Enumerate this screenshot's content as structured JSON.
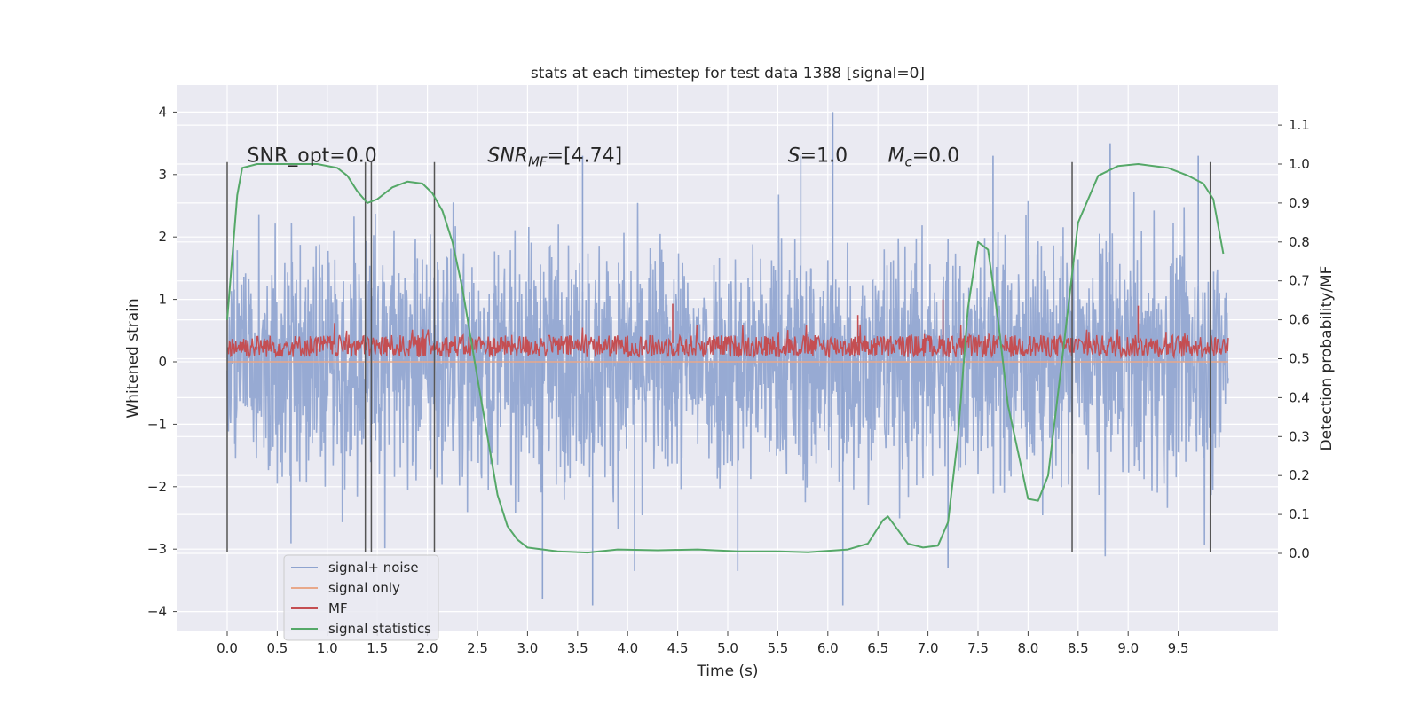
{
  "chart_data": {
    "type": "line",
    "title": "stats at each timestep for test data 1388 [signal=0]",
    "xlabel": "Time (s)",
    "ylabel": "Whitened strain",
    "ylabel_right": "Detection probability/MF",
    "xlim": [
      -0.5,
      10.5
    ],
    "ylim": [
      -4.3,
      4.4
    ],
    "ylim_right": [
      -0.2,
      1.2
    ],
    "grid": true,
    "legend_position": "lower-left",
    "x_ticks": [
      "0.0",
      "0.5",
      "1.0",
      "1.5",
      "2.0",
      "2.5",
      "3.0",
      "3.5",
      "4.0",
      "4.5",
      "5.0",
      "5.5",
      "6.0",
      "6.5",
      "7.0",
      "7.5",
      "8.0",
      "8.5",
      "9.0",
      "9.5"
    ],
    "y_ticks": [
      "4",
      "3",
      "2",
      "1",
      "0",
      "−1",
      "−2",
      "−3",
      "−4"
    ],
    "y_right_ticks": [
      "1.1",
      "1.0",
      "0.9",
      "0.8",
      "0.7",
      "0.6",
      "0.5",
      "0.4",
      "0.3",
      "0.2",
      "0.1",
      "0.0"
    ],
    "annotations": [
      {
        "text": "SNR_opt=0.0",
        "x": 0.2,
        "y": 3.2
      },
      {
        "text_main": "SNR",
        "text_sub": "MF",
        "text_rest": "=[4.74]",
        "x": 2.6,
        "y": 3.2
      },
      {
        "text_main": "S",
        "text_sub": "",
        "text_rest": "=1.0",
        "x": 5.6,
        "y": 3.2
      },
      {
        "text_main": "M",
        "text_sub": "c",
        "text_rest": "=0.0",
        "x": 6.6,
        "y": 3.2
      }
    ],
    "vertical_lines": [
      0.0,
      1.38,
      1.44,
      2.07,
      8.44,
      9.82
    ],
    "vertical_line_range": [
      -3.05,
      3.2
    ],
    "series": [
      {
        "name": "signal+ noise",
        "color": "#8ea3cf",
        "axis": "left",
        "description": "whitened strain noise, roughly symmetric in [-3.2, 3.3], spikes to 4.0",
        "x_range": [
          0.0,
          10.0
        ],
        "envelope_upper": 2.4,
        "envelope_lower": -2.5,
        "spikes": [
          {
            "x": 6.05,
            "y": 4.0
          },
          {
            "x": 8.82,
            "y": 3.5
          },
          {
            "x": 3.55,
            "y": 3.3
          },
          {
            "x": 7.65,
            "y": 3.3
          },
          {
            "x": 9.7,
            "y": 3.3
          },
          {
            "x": 5.73,
            "y": 3.3
          },
          {
            "x": 3.15,
            "y": -3.8
          },
          {
            "x": 3.65,
            "y": -3.9
          },
          {
            "x": 6.15,
            "y": -3.9
          },
          {
            "x": 5.1,
            "y": -3.35
          },
          {
            "x": 4.07,
            "y": -3.35
          },
          {
            "x": 7.2,
            "y": -3.3
          }
        ]
      },
      {
        "name": "signal only",
        "color": "#e8a88a",
        "axis": "left",
        "description": "zero signal",
        "x": [
          0.0,
          10.0
        ],
        "y": [
          0.0,
          0.0
        ]
      },
      {
        "name": "MF",
        "color": "#c44e52",
        "axis": "left",
        "description": "matched filter output fluctuating between 0.0 and 0.65, peaks near 0.95",
        "x_range": [
          0.0,
          10.0
        ],
        "mean": 0.25,
        "spread": 0.18,
        "peaks": [
          {
            "x": 4.45,
            "y": 0.93
          },
          {
            "x": 7.15,
            "y": 1.0
          },
          {
            "x": 9.1,
            "y": 0.9
          },
          {
            "x": 6.3,
            "y": 0.75
          }
        ]
      },
      {
        "name": "signal statistics",
        "color": "#55a868",
        "axis": "right",
        "x": [
          0.0,
          0.1,
          0.15,
          0.3,
          0.6,
          0.9,
          1.1,
          1.2,
          1.3,
          1.4,
          1.5,
          1.65,
          1.8,
          1.95,
          2.05,
          2.15,
          2.25,
          2.35,
          2.5,
          2.6,
          2.7,
          2.8,
          2.9,
          3.0,
          3.3,
          3.6,
          3.9,
          4.3,
          4.7,
          5.1,
          5.5,
          5.8,
          6.2,
          6.4,
          6.55,
          6.6,
          6.7,
          6.8,
          6.95,
          7.1,
          7.2,
          7.3,
          7.4,
          7.5,
          7.6,
          7.7,
          7.8,
          7.95,
          8.0,
          8.1,
          8.2,
          8.35,
          8.5,
          8.7,
          8.9,
          9.1,
          9.4,
          9.6,
          9.75,
          9.85,
          9.95
        ],
        "y": [
          0.6,
          0.92,
          0.99,
          1.0,
          1.0,
          1.0,
          0.99,
          0.97,
          0.93,
          0.9,
          0.91,
          0.94,
          0.955,
          0.95,
          0.925,
          0.88,
          0.8,
          0.68,
          0.45,
          0.3,
          0.15,
          0.07,
          0.035,
          0.015,
          0.005,
          0.002,
          0.01,
          0.008,
          0.01,
          0.005,
          0.005,
          0.003,
          0.01,
          0.025,
          0.085,
          0.095,
          0.06,
          0.025,
          0.015,
          0.02,
          0.08,
          0.3,
          0.63,
          0.8,
          0.78,
          0.6,
          0.38,
          0.2,
          0.14,
          0.135,
          0.2,
          0.52,
          0.85,
          0.97,
          0.995,
          1.0,
          0.99,
          0.97,
          0.95,
          0.91,
          0.77
        ]
      }
    ]
  }
}
